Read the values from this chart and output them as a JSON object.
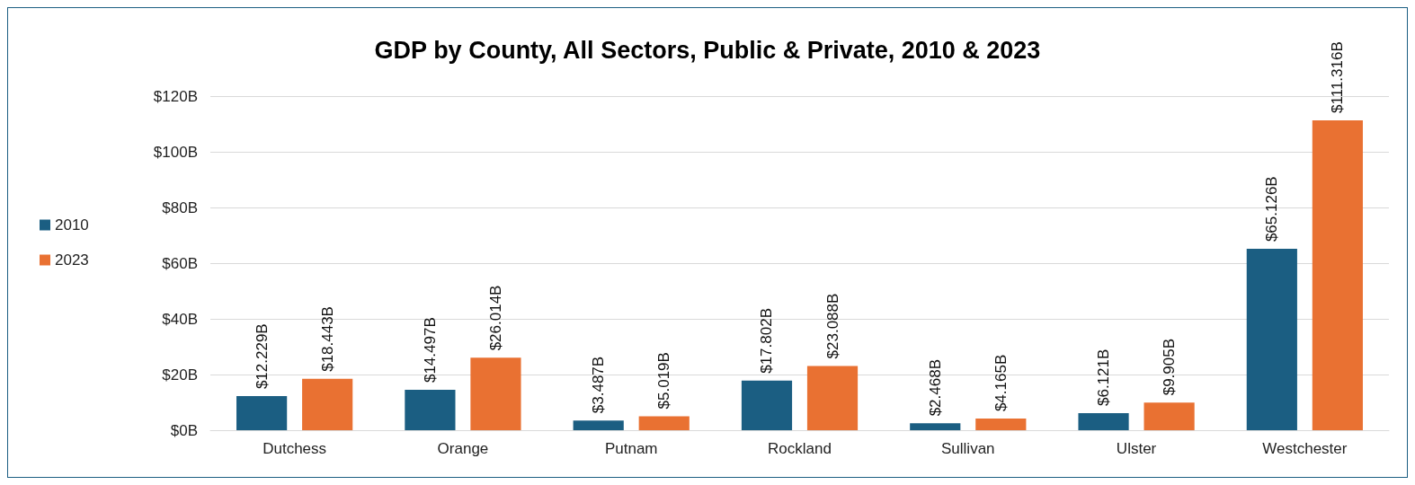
{
  "chart_data": {
    "type": "bar",
    "title": "GDP by County, All Sectors, Public & Private, 2010 & 2023",
    "categories": [
      "Dutchess",
      "Orange",
      "Putnam",
      "Rockland",
      "Sullivan",
      "Ulster",
      "Westchester"
    ],
    "series": [
      {
        "name": "2010",
        "color": "#1b5e82",
        "values": [
          12.229,
          14.497,
          3.487,
          17.802,
          2.468,
          6.121,
          65.126
        ],
        "value_labels": [
          "$12.229B",
          "$14.497B",
          "$3.487B",
          "$17.802B",
          "$2.468B",
          "$6.121B",
          "$65.126B"
        ]
      },
      {
        "name": "2023",
        "color": "#e97132",
        "values": [
          18.443,
          26.014,
          5.019,
          23.088,
          4.165,
          9.905,
          111.316
        ],
        "value_labels": [
          "$18.443B",
          "$26.014B",
          "$5.019B",
          "$23.088B",
          "$4.165B",
          "$9.905B",
          "$111.316B"
        ]
      }
    ],
    "ylim": [
      0,
      120
    ],
    "yticks": [
      {
        "value": 0,
        "label": "$0B"
      },
      {
        "value": 20,
        "label": "$20B"
      },
      {
        "value": 40,
        "label": "$40B"
      },
      {
        "value": 60,
        "label": "$60B"
      },
      {
        "value": 80,
        "label": "$80B"
      },
      {
        "value": 100,
        "label": "$100B"
      },
      {
        "value": 120,
        "label": "$120B"
      }
    ],
    "grid": "y",
    "legend": "left"
  }
}
